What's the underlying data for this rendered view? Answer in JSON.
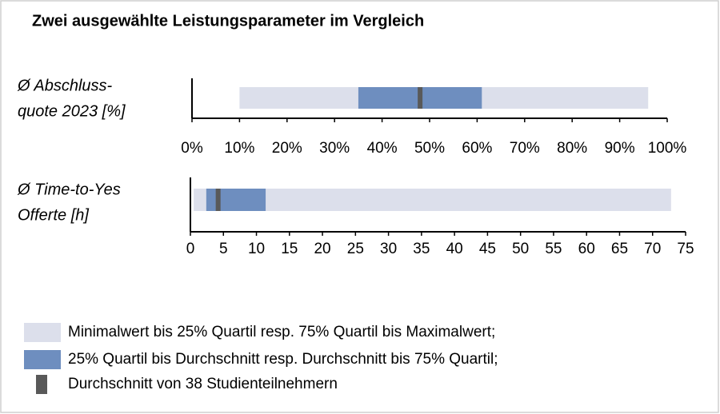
{
  "title": "Zwei ausgewählte Leistungsparameter im Vergleich",
  "legend": [
    {
      "name": "Minimalwert bis 25% Quartil resp. 75% Quartil bis Maximalwert;",
      "color": "#dcdfeb"
    },
    {
      "name": "25% Quartil bis Durchschnitt resp. Durchschnitt bis 75% Quartil;",
      "color": "#6e8ebf"
    },
    {
      "name": "Durchschnitt von 38 Studienteilnehmern",
      "color": "#595959"
    }
  ],
  "chart_data": [
    {
      "type": "range",
      "label": [
        "Ø Abschluss-",
        "quote 2023 [%]"
      ],
      "min": 10,
      "q1": 35,
      "mean": 48,
      "q3": 61,
      "max": 96,
      "xlim": [
        0,
        100
      ],
      "xticks": [
        {
          "value": 0,
          "label": "0%"
        },
        {
          "value": 10,
          "label": "10%"
        },
        {
          "value": 20,
          "label": "20%"
        },
        {
          "value": 30,
          "label": "30%"
        },
        {
          "value": 40,
          "label": "40%"
        },
        {
          "value": 50,
          "label": "50%"
        },
        {
          "value": 60,
          "label": "60%"
        },
        {
          "value": 70,
          "label": "70%"
        },
        {
          "value": 80,
          "label": "80%"
        },
        {
          "value": 90,
          "label": "90%"
        },
        {
          "value": 100,
          "label": "100%"
        }
      ]
    },
    {
      "type": "range",
      "label": [
        "Ø Time-to-Yes",
        "Offerte [h]"
      ],
      "min": 0.5,
      "q1": 2.4,
      "mean": 4.2,
      "q3": 11.4,
      "max": 72.8,
      "xlim": [
        0,
        75
      ],
      "xticks": [
        0,
        5,
        10,
        15,
        20,
        25,
        30,
        35,
        40,
        45,
        50,
        55,
        60,
        65,
        70,
        75
      ]
    }
  ]
}
